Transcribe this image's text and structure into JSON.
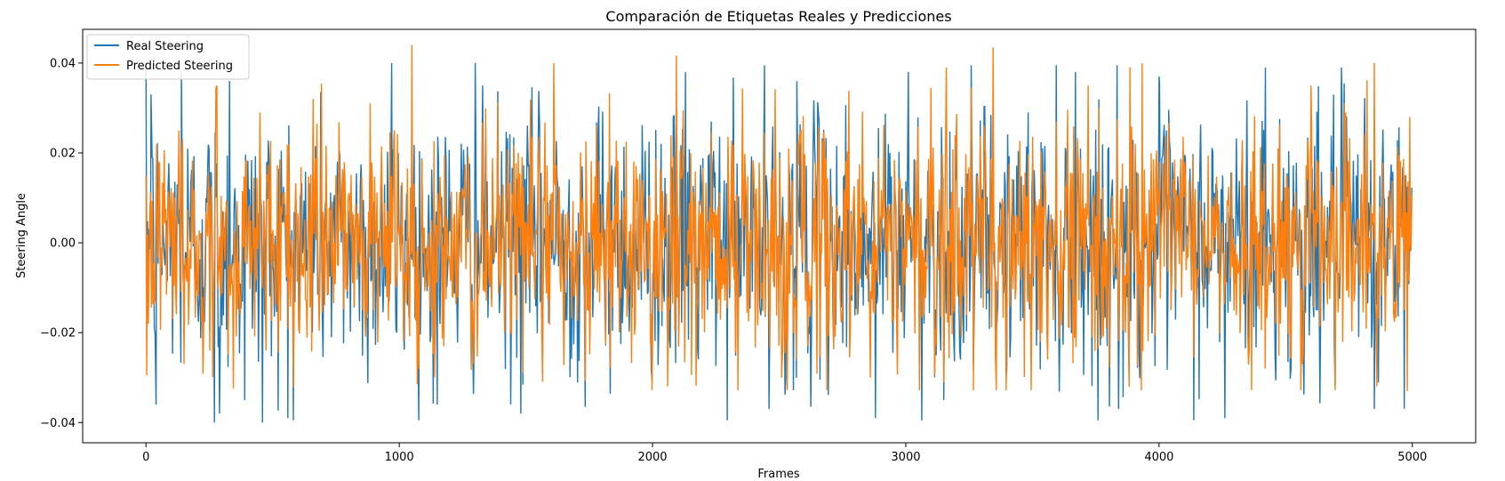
{
  "chart_data": {
    "type": "line",
    "title": "Comparación de Etiquetas Reales y Predicciones",
    "xlabel": "Frames",
    "ylabel": "Steering Angle",
    "xlim": [
      -250,
      5250
    ],
    "ylim": [
      -0.0445,
      0.0475
    ],
    "xticks": [
      0,
      1000,
      2000,
      3000,
      4000,
      5000
    ],
    "yticks": [
      -0.04,
      -0.02,
      0.0,
      0.02,
      0.04
    ],
    "xtick_labels": [
      "0",
      "1000",
      "2000",
      "3000",
      "4000",
      "5000"
    ],
    "ytick_labels": [
      "−0.04",
      "−0.02",
      "0.00",
      "0.02",
      "0.04"
    ],
    "grid": false,
    "legend_position": "top-left",
    "n_points": 5000,
    "series": [
      {
        "name": "Real Steering",
        "color": "#1f77b4",
        "summary": {
          "min": -0.04,
          "max": 0.04,
          "mean": 0.0
        },
        "notable_points": [
          {
            "x": 20,
            "y": 0.033
          },
          {
            "x": 40,
            "y": -0.036
          },
          {
            "x": 140,
            "y": 0.038
          },
          {
            "x": 270,
            "y": -0.04
          },
          {
            "x": 290,
            "y": -0.038
          },
          {
            "x": 330,
            "y": 0.036
          },
          {
            "x": 390,
            "y": -0.035
          },
          {
            "x": 460,
            "y": -0.04
          },
          {
            "x": 560,
            "y": -0.039
          },
          {
            "x": 970,
            "y": 0.04
          },
          {
            "x": 1150,
            "y": -0.036
          },
          {
            "x": 1300,
            "y": 0.04
          },
          {
            "x": 1480,
            "y": -0.038
          },
          {
            "x": 2130,
            "y": 0.038
          },
          {
            "x": 2460,
            "y": -0.037
          },
          {
            "x": 2570,
            "y": 0.036
          },
          {
            "x": 2880,
            "y": -0.039
          },
          {
            "x": 3010,
            "y": 0.038
          },
          {
            "x": 3150,
            "y": -0.035
          },
          {
            "x": 3670,
            "y": 0.038
          },
          {
            "x": 3840,
            "y": -0.037
          },
          {
            "x": 4000,
            "y": 0.037
          },
          {
            "x": 4260,
            "y": -0.039
          },
          {
            "x": 4420,
            "y": 0.039
          },
          {
            "x": 4720,
            "y": 0.039
          },
          {
            "x": 4850,
            "y": -0.037
          },
          {
            "x": 4990,
            "y": 0.0
          }
        ]
      },
      {
        "name": "Predicted Steering",
        "color": "#ff7f0e",
        "summary": {
          "min": -0.033,
          "max": 0.044,
          "mean": 0.0
        },
        "notable_points": [
          {
            "x": 130,
            "y": 0.025
          },
          {
            "x": 280,
            "y": 0.035
          },
          {
            "x": 450,
            "y": 0.029
          },
          {
            "x": 660,
            "y": 0.032
          },
          {
            "x": 1050,
            "y": 0.044
          },
          {
            "x": 1140,
            "y": -0.03
          },
          {
            "x": 1610,
            "y": 0.04
          },
          {
            "x": 2000,
            "y": -0.025
          },
          {
            "x": 2060,
            "y": -0.032
          },
          {
            "x": 2510,
            "y": -0.03
          },
          {
            "x": 2860,
            "y": -0.03
          },
          {
            "x": 3160,
            "y": 0.039
          },
          {
            "x": 3560,
            "y": -0.026
          },
          {
            "x": 3720,
            "y": 0.035
          },
          {
            "x": 4600,
            "y": 0.035
          },
          {
            "x": 4850,
            "y": 0.04
          },
          {
            "x": 4860,
            "y": -0.032
          },
          {
            "x": 4980,
            "y": -0.033
          },
          {
            "x": 4990,
            "y": 0.028
          }
        ]
      }
    ]
  }
}
